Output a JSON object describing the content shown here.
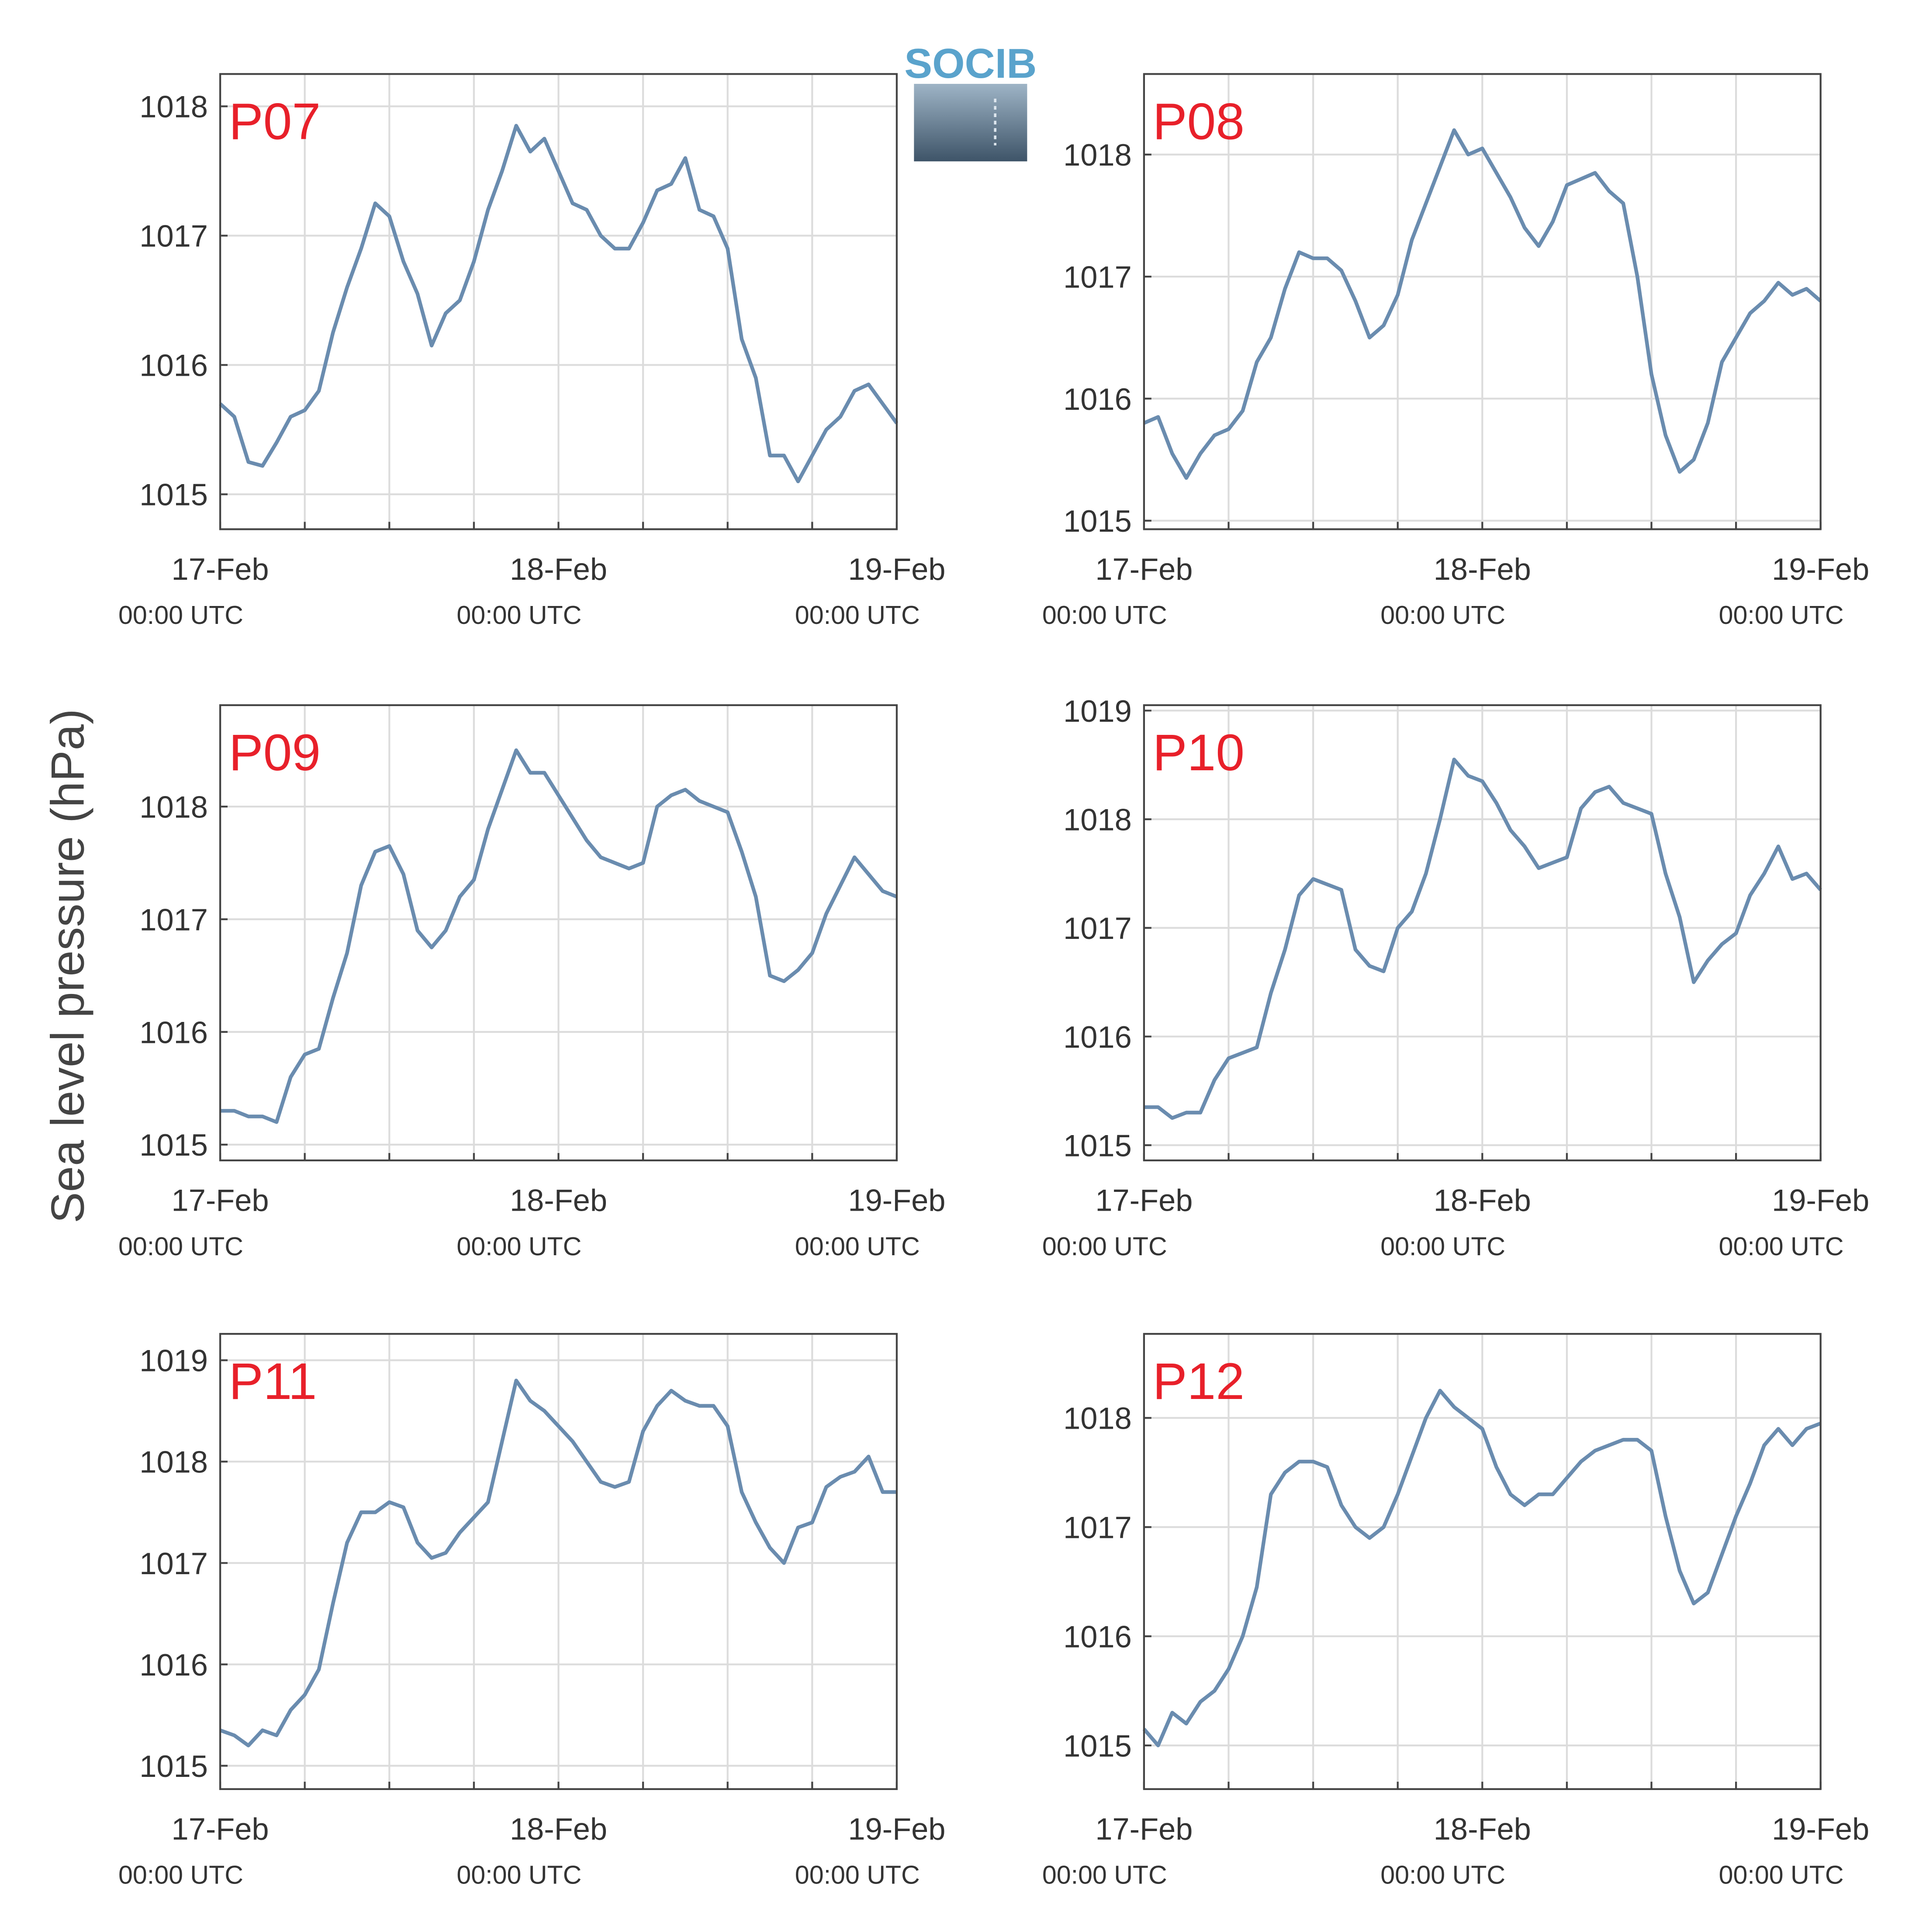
{
  "ylabel": "Sea level pressure (hPa)",
  "logo": "SOCIB",
  "chart_data": [
    {
      "type": "line",
      "title": "P07",
      "color": "#6a8caf",
      "grid": true,
      "x": [
        0,
        1,
        2,
        3,
        4,
        5,
        6,
        7,
        8,
        9,
        10,
        11,
        12,
        13,
        14,
        15,
        16,
        17,
        18,
        19,
        20,
        21,
        22,
        23,
        24,
        25,
        26,
        27,
        28,
        29,
        30,
        31,
        32,
        33,
        34,
        35,
        36,
        37,
        38,
        39,
        40,
        41,
        42,
        43,
        44,
        45,
        46,
        47,
        48
      ],
      "values": [
        1015.7,
        1015.6,
        1015.25,
        1015.22,
        1015.4,
        1015.6,
        1015.65,
        1015.8,
        1016.25,
        1016.6,
        1016.9,
        1017.25,
        1017.15,
        1016.8,
        1016.55,
        1016.15,
        1016.4,
        1016.5,
        1016.8,
        1017.2,
        1017.5,
        1017.85,
        1017.65,
        1017.75,
        1017.5,
        1017.25,
        1017.2,
        1017.0,
        1016.9,
        1016.9,
        1017.1,
        1017.35,
        1017.4,
        1017.6,
        1017.2,
        1017.15,
        1016.9,
        1016.2,
        1015.9,
        1015.3,
        1015.3,
        1015.1,
        1015.3,
        1015.5,
        1015.6,
        1015.8,
        1015.85,
        1015.7,
        1015.55
      ],
      "xlim": [
        0,
        48
      ],
      "ylim": [
        1014.73,
        1018.25
      ],
      "yticks": [
        1015,
        1016,
        1017,
        1018
      ],
      "xticks": [
        {
          "value": 0,
          "label": "17-Feb",
          "sublabel": "00:00 UTC"
        },
        {
          "value": 6,
          "label": null
        },
        {
          "value": 12,
          "label": null
        },
        {
          "value": 18,
          "label": null
        },
        {
          "value": 24,
          "label": "18-Feb",
          "sublabel": "00:00 UTC"
        },
        {
          "value": 30,
          "label": null
        },
        {
          "value": 36,
          "label": null
        },
        {
          "value": 42,
          "label": null
        },
        {
          "value": 48,
          "label": "19-Feb",
          "sublabel": "00:00 UTC"
        }
      ]
    },
    {
      "type": "line",
      "title": "P08",
      "color": "#6a8caf",
      "grid": true,
      "x": [
        0,
        1,
        2,
        3,
        4,
        5,
        6,
        7,
        8,
        9,
        10,
        11,
        12,
        13,
        14,
        15,
        16,
        17,
        18,
        19,
        20,
        21,
        22,
        23,
        24,
        25,
        26,
        27,
        28,
        29,
        30,
        31,
        32,
        33,
        34,
        35,
        36,
        37,
        38,
        39,
        40,
        41,
        42,
        43,
        44,
        45,
        46,
        47,
        48
      ],
      "values": [
        1015.8,
        1015.85,
        1015.55,
        1015.35,
        1015.55,
        1015.7,
        1015.75,
        1015.9,
        1016.3,
        1016.5,
        1016.9,
        1017.2,
        1017.15,
        1017.15,
        1017.05,
        1016.8,
        1016.5,
        1016.6,
        1016.85,
        1017.3,
        1017.6,
        1017.9,
        1018.2,
        1018.0,
        1018.05,
        1017.85,
        1017.65,
        1017.4,
        1017.25,
        1017.45,
        1017.75,
        1017.8,
        1017.85,
        1017.7,
        1017.6,
        1017.0,
        1016.2,
        1015.7,
        1015.4,
        1015.5,
        1015.8,
        1016.3,
        1016.5,
        1016.7,
        1016.8,
        1016.95,
        1016.85,
        1016.9,
        1016.8
      ],
      "xlim": [
        0,
        48
      ],
      "ylim": [
        1014.93,
        1018.66
      ],
      "yticks": [
        1015,
        1016,
        1017,
        1018
      ],
      "xticks": [
        {
          "value": 0,
          "label": "17-Feb",
          "sublabel": "00:00 UTC"
        },
        {
          "value": 6,
          "label": null
        },
        {
          "value": 12,
          "label": null
        },
        {
          "value": 18,
          "label": null
        },
        {
          "value": 24,
          "label": "18-Feb",
          "sublabel": "00:00 UTC"
        },
        {
          "value": 30,
          "label": null
        },
        {
          "value": 36,
          "label": null
        },
        {
          "value": 42,
          "label": null
        },
        {
          "value": 48,
          "label": "19-Feb",
          "sublabel": "00:00 UTC"
        }
      ]
    },
    {
      "type": "line",
      "title": "P09",
      "color": "#6a8caf",
      "grid": true,
      "x": [
        0,
        1,
        2,
        3,
        4,
        5,
        6,
        7,
        8,
        9,
        10,
        11,
        12,
        13,
        14,
        15,
        16,
        17,
        18,
        19,
        20,
        21,
        22,
        23,
        24,
        25,
        26,
        27,
        28,
        29,
        30,
        31,
        32,
        33,
        34,
        35,
        36,
        37,
        38,
        39,
        40,
        41,
        42,
        43,
        44,
        45,
        46,
        47,
        48
      ],
      "values": [
        1015.3,
        1015.3,
        1015.25,
        1015.25,
        1015.2,
        1015.6,
        1015.8,
        1015.85,
        1016.3,
        1016.7,
        1017.3,
        1017.6,
        1017.65,
        1017.4,
        1016.9,
        1016.75,
        1016.9,
        1017.2,
        1017.35,
        1017.8,
        1018.15,
        1018.5,
        1018.3,
        1018.3,
        1018.1,
        1017.9,
        1017.7,
        1017.55,
        1017.5,
        1017.45,
        1017.5,
        1018.0,
        1018.1,
        1018.15,
        1018.05,
        1018.0,
        1017.95,
        1017.6,
        1017.2,
        1016.5,
        1016.45,
        1016.55,
        1016.7,
        1017.05,
        1017.3,
        1017.55,
        1017.4,
        1017.25,
        1017.2
      ],
      "xlim": [
        0,
        48
      ],
      "ylim": [
        1014.86,
        1018.9
      ],
      "yticks": [
        1015,
        1016,
        1017,
        1018
      ],
      "xticks": [
        {
          "value": 0,
          "label": "17-Feb",
          "sublabel": "00:00 UTC"
        },
        {
          "value": 6,
          "label": null
        },
        {
          "value": 12,
          "label": null
        },
        {
          "value": 18,
          "label": null
        },
        {
          "value": 24,
          "label": "18-Feb",
          "sublabel": "00:00 UTC"
        },
        {
          "value": 30,
          "label": null
        },
        {
          "value": 36,
          "label": null
        },
        {
          "value": 42,
          "label": null
        },
        {
          "value": 48,
          "label": "19-Feb",
          "sublabel": "00:00 UTC"
        }
      ]
    },
    {
      "type": "line",
      "title": "P10",
      "color": "#6a8caf",
      "grid": true,
      "x": [
        0,
        1,
        2,
        3,
        4,
        5,
        6,
        7,
        8,
        9,
        10,
        11,
        12,
        13,
        14,
        15,
        16,
        17,
        18,
        19,
        20,
        21,
        22,
        23,
        24,
        25,
        26,
        27,
        28,
        29,
        30,
        31,
        32,
        33,
        34,
        35,
        36,
        37,
        38,
        39,
        40,
        41,
        42,
        43,
        44,
        45,
        46,
        47,
        48
      ],
      "values": [
        1015.35,
        1015.35,
        1015.25,
        1015.3,
        1015.3,
        1015.6,
        1015.8,
        1015.85,
        1015.9,
        1016.4,
        1016.8,
        1017.3,
        1017.45,
        1017.4,
        1017.35,
        1016.8,
        1016.65,
        1016.6,
        1017.0,
        1017.15,
        1017.5,
        1018.0,
        1018.55,
        1018.4,
        1018.35,
        1018.15,
        1017.9,
        1017.75,
        1017.55,
        1017.6,
        1017.65,
        1018.1,
        1018.25,
        1018.3,
        1018.15,
        1018.1,
        1018.05,
        1017.5,
        1017.1,
        1016.5,
        1016.7,
        1016.85,
        1016.95,
        1017.3,
        1017.5,
        1017.75,
        1017.45,
        1017.5,
        1017.35
      ],
      "xlim": [
        0,
        48
      ],
      "ylim": [
        1014.86,
        1019.05
      ],
      "yticks": [
        1015,
        1016,
        1017,
        1018,
        1019
      ],
      "xticks": [
        {
          "value": 0,
          "label": "17-Feb",
          "sublabel": "00:00 UTC"
        },
        {
          "value": 6,
          "label": null
        },
        {
          "value": 12,
          "label": null
        },
        {
          "value": 18,
          "label": null
        },
        {
          "value": 24,
          "label": "18-Feb",
          "sublabel": "00:00 UTC"
        },
        {
          "value": 30,
          "label": null
        },
        {
          "value": 36,
          "label": null
        },
        {
          "value": 42,
          "label": null
        },
        {
          "value": 48,
          "label": "19-Feb",
          "sublabel": "00:00 UTC"
        }
      ]
    },
    {
      "type": "line",
      "title": "P11",
      "color": "#6a8caf",
      "grid": true,
      "x": [
        0,
        1,
        2,
        3,
        4,
        5,
        6,
        7,
        8,
        9,
        10,
        11,
        12,
        13,
        14,
        15,
        16,
        17,
        18,
        19,
        20,
        21,
        22,
        23,
        24,
        25,
        26,
        27,
        28,
        29,
        30,
        31,
        32,
        33,
        34,
        35,
        36,
        37,
        38,
        39,
        40,
        41,
        42,
        43,
        44,
        45,
        46,
        47,
        48
      ],
      "values": [
        1015.35,
        1015.3,
        1015.2,
        1015.35,
        1015.3,
        1015.55,
        1015.7,
        1015.95,
        1016.6,
        1017.2,
        1017.5,
        1017.5,
        1017.6,
        1017.55,
        1017.2,
        1017.05,
        1017.1,
        1017.3,
        1017.45,
        1017.6,
        1018.2,
        1018.8,
        1018.6,
        1018.5,
        1018.35,
        1018.2,
        1018.0,
        1017.8,
        1017.75,
        1017.8,
        1018.3,
        1018.55,
        1018.7,
        1018.6,
        1018.55,
        1018.55,
        1018.35,
        1017.7,
        1017.4,
        1017.15,
        1017.0,
        1017.35,
        1017.4,
        1017.75,
        1017.85,
        1017.9,
        1018.05,
        1017.7,
        1017.7
      ],
      "xlim": [
        0,
        48
      ],
      "ylim": [
        1014.77,
        1019.26
      ],
      "yticks": [
        1015,
        1016,
        1017,
        1018,
        1019
      ],
      "xticks": [
        {
          "value": 0,
          "label": "17-Feb",
          "sublabel": "00:00 UTC"
        },
        {
          "value": 6,
          "label": null
        },
        {
          "value": 12,
          "label": null
        },
        {
          "value": 18,
          "label": null
        },
        {
          "value": 24,
          "label": "18-Feb",
          "sublabel": "00:00 UTC"
        },
        {
          "value": 30,
          "label": null
        },
        {
          "value": 36,
          "label": null
        },
        {
          "value": 42,
          "label": null
        },
        {
          "value": 48,
          "label": "19-Feb",
          "sublabel": "00:00 UTC"
        }
      ]
    },
    {
      "type": "line",
      "title": "P12",
      "color": "#6a8caf",
      "grid": true,
      "x": [
        0,
        1,
        2,
        3,
        4,
        5,
        6,
        7,
        8,
        9,
        10,
        11,
        12,
        13,
        14,
        15,
        16,
        17,
        18,
        19,
        20,
        21,
        22,
        23,
        24,
        25,
        26,
        27,
        28,
        29,
        30,
        31,
        32,
        33,
        34,
        35,
        36,
        37,
        38,
        39,
        40,
        41,
        42,
        43,
        44,
        45,
        46,
        47,
        48
      ],
      "values": [
        1015.15,
        1015.0,
        1015.3,
        1015.2,
        1015.4,
        1015.5,
        1015.7,
        1016.0,
        1016.45,
        1017.3,
        1017.5,
        1017.6,
        1017.6,
        1017.55,
        1017.2,
        1017.0,
        1016.9,
        1017.0,
        1017.3,
        1017.65,
        1018.0,
        1018.25,
        1018.1,
        1018.0,
        1017.9,
        1017.55,
        1017.3,
        1017.2,
        1017.3,
        1017.3,
        1017.45,
        1017.6,
        1017.7,
        1017.75,
        1017.8,
        1017.8,
        1017.7,
        1017.1,
        1016.6,
        1016.3,
        1016.4,
        1016.75,
        1017.1,
        1017.4,
        1017.75,
        1017.9,
        1017.75,
        1017.9,
        1017.95
      ],
      "xlim": [
        0,
        48
      ],
      "ylim": [
        1014.6,
        1018.77
      ],
      "yticks": [
        1015,
        1016,
        1017,
        1018
      ],
      "xticks": [
        {
          "value": 0,
          "label": "17-Feb",
          "sublabel": "00:00 UTC"
        },
        {
          "value": 6,
          "label": null
        },
        {
          "value": 12,
          "label": null
        },
        {
          "value": 18,
          "label": null
        },
        {
          "value": 24,
          "label": "18-Feb",
          "sublabel": "00:00 UTC"
        },
        {
          "value": 30,
          "label": null
        },
        {
          "value": 36,
          "label": null
        },
        {
          "value": 42,
          "label": null
        },
        {
          "value": 48,
          "label": "19-Feb",
          "sublabel": "00:00 UTC"
        }
      ]
    }
  ]
}
